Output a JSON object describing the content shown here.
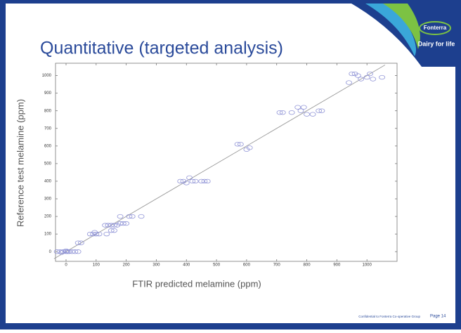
{
  "chart_data": {
    "type": "scatter",
    "title": "Quantitative (targeted analysis)",
    "x_label": "FTIR predicted melamine (ppm)",
    "y_label": "Reference test melamine (ppm)",
    "x": [
      -30,
      -20,
      -10,
      0,
      5,
      10,
      20,
      30,
      40,
      -15,
      0,
      40,
      50,
      80,
      90,
      100,
      110,
      95,
      130,
      140,
      150,
      160,
      170,
      135,
      150,
      160,
      180,
      190,
      200,
      180,
      210,
      220,
      250,
      380,
      390,
      400,
      410,
      420,
      430,
      450,
      460,
      470,
      570,
      580,
      600,
      610,
      710,
      720,
      750,
      770,
      780,
      790,
      800,
      820,
      840,
      850,
      940,
      950,
      960,
      970,
      980,
      1000,
      1010,
      1020,
      1050
    ],
    "y": [
      0,
      0,
      0,
      0,
      0,
      0,
      0,
      0,
      0,
      -5,
      5,
      50,
      50,
      100,
      100,
      100,
      100,
      110,
      150,
      150,
      150,
      150,
      150,
      100,
      120,
      120,
      160,
      160,
      160,
      200,
      200,
      200,
      200,
      400,
      400,
      390,
      420,
      400,
      400,
      400,
      400,
      400,
      610,
      610,
      580,
      590,
      790,
      790,
      790,
      820,
      800,
      820,
      780,
      780,
      800,
      800,
      960,
      1010,
      1010,
      1000,
      980,
      990,
      1010,
      980,
      990
    ],
    "color": "#8f93d6",
    "reference_line": {
      "x": [
        -40,
        1060
      ],
      "y": [
        -40,
        1060
      ],
      "color": "#9a9a9a"
    },
    "xlim": [
      -35,
      1100
    ],
    "ylim": [
      -55,
      1070
    ],
    "xticks": [
      0,
      100,
      200,
      300,
      400,
      500,
      600,
      700,
      800,
      900,
      1000
    ],
    "yticks": [
      0,
      100,
      200,
      300,
      400,
      500,
      600,
      700,
      800,
      900,
      1000
    ]
  },
  "logo": {
    "name": "Fonterra",
    "tagline": "Dairy for life"
  },
  "footer": {
    "note": "Confidential to Fonterra Co-operative Group",
    "page": "Page 14"
  }
}
